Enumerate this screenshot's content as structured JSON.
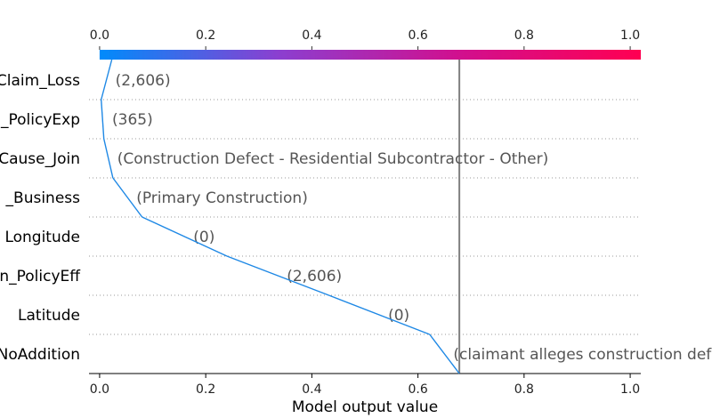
{
  "chart_data": {
    "type": "line",
    "title": "",
    "xlabel": "Model output value",
    "ylabel": "",
    "xlim": [
      -0.02,
      1.02
    ],
    "x_ticks": [
      "0.0",
      "0.2",
      "0.4",
      "0.6",
      "0.8",
      "1.0"
    ],
    "x_tick_values": [
      0.0,
      0.2,
      0.4,
      0.6,
      0.8,
      1.0
    ],
    "grid": "dotted horizontal separators",
    "colorbar": {
      "range": [
        0,
        1
      ],
      "colors": [
        "#008bfb",
        "#8b3fd0",
        "#d0108f",
        "#ff0052"
      ]
    },
    "reference_line": {
      "x": 0.678,
      "color": "#808080"
    },
    "features": [
      {
        "name": "Claim_Loss",
        "value_label": "(2,606)",
        "x_start": 0.023,
        "x_end": 0.003
      },
      {
        "name": "_PolicyExp",
        "value_label": "(365)",
        "x_start": 0.003,
        "x_end": 0.008
      },
      {
        "name": "Cause_Join",
        "value_label": "(Construction Defect - Residential Subcontractor - Other)",
        "x_start": 0.008,
        "x_end": 0.025
      },
      {
        "name": "_Business",
        "value_label": "(Primary Construction)",
        "x_start": 0.025,
        "x_end": 0.08
      },
      {
        "name": "Longitude",
        "value_label": "(0)",
        "x_start": 0.08,
        "x_end": 0.24
      },
      {
        "name": "n_PolicyEff",
        "value_label": "(2,606)",
        "x_start": 0.24,
        "x_end": 0.432
      },
      {
        "name": "Latitude",
        "value_label": "(0)",
        "x_start": 0.432,
        "x_end": 0.622
      },
      {
        "name": "NoAddition",
        "value_label": "(claimant alleges construction defect)",
        "x_start": 0.622,
        "x_end": 0.678
      }
    ]
  }
}
